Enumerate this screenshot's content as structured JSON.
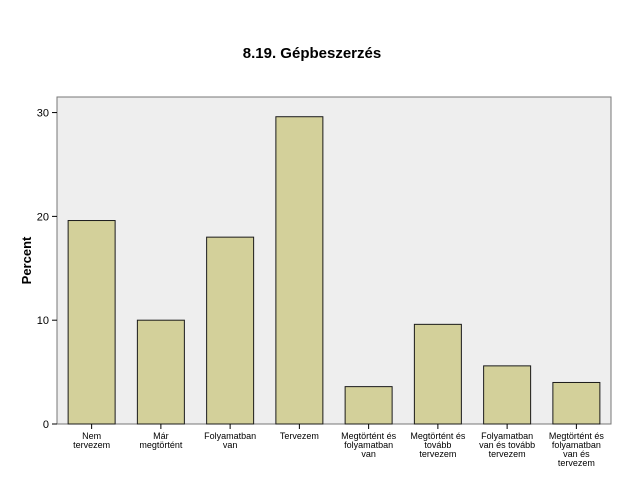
{
  "chart_data": {
    "type": "bar",
    "title": "8.19. Gépbeszerzés",
    "xlabel": "",
    "ylabel": "Percent",
    "ylim": [
      0,
      31.5
    ],
    "yticks": [
      0,
      10,
      20,
      30
    ],
    "grid": false,
    "categories": [
      [
        "Nem",
        "tervezem"
      ],
      [
        "Már",
        "megtörtént"
      ],
      [
        "Folyamatban",
        "van"
      ],
      [
        "Tervezem"
      ],
      [
        "Megtörtént és",
        "folyamatban",
        "van"
      ],
      [
        "Megtörtént és",
        "tovább",
        "tervezem"
      ],
      [
        "Folyamatban",
        "van és tovább",
        "tervezem"
      ],
      [
        "Megtörtént és",
        "folyamatban",
        "van és",
        "tervezem"
      ]
    ],
    "values": [
      19.6,
      10.0,
      18.0,
      29.6,
      3.6,
      9.6,
      5.6,
      4.0
    ],
    "colors": {
      "bar": "#d3d09a",
      "bar_stroke": "#1a1a1a",
      "plot_bg": "#eeeeee",
      "plot_border": "#777777"
    }
  }
}
